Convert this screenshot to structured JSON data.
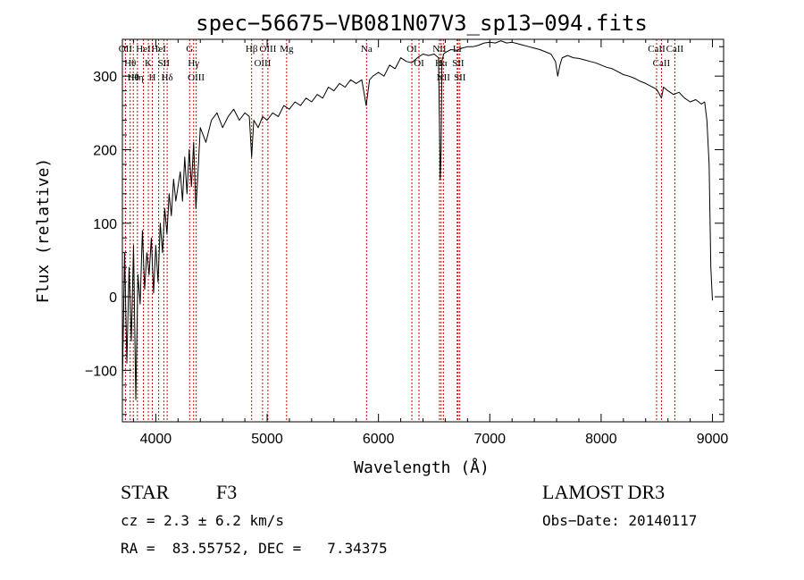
{
  "chart_data": {
    "type": "line",
    "title": "spec−56675−VB081N07V3_sp13−094.fits",
    "xlabel": "Wavelength (Å)",
    "ylabel": "Flux (relative)",
    "xlim": [
      3700,
      9100
    ],
    "ylim": [
      -170,
      350
    ],
    "xticks": [
      4000,
      5000,
      6000,
      7000,
      8000,
      9000
    ],
    "xtick_labels": [
      "4000",
      "5000",
      "6000",
      "7000",
      "8000",
      "9000"
    ],
    "yticks": [
      -100,
      0,
      100,
      200,
      300
    ],
    "ytick_labels": [
      "−100",
      "0",
      "100",
      "200",
      "300"
    ],
    "grid": false,
    "series": [
      {
        "x": [
          3700,
          3720,
          3740,
          3760,
          3780,
          3800,
          3820,
          3840,
          3860,
          3880,
          3900,
          3920,
          3940,
          3960,
          3980,
          4000,
          4020,
          4040,
          4060,
          4080,
          4100,
          4120,
          4140,
          4160,
          4180,
          4200,
          4220,
          4240,
          4260,
          4280,
          4300,
          4320,
          4340,
          4360,
          4380,
          4400,
          4450,
          4500,
          4550,
          4600,
          4650,
          4700,
          4750,
          4800,
          4840,
          4861,
          4880,
          4920,
          4960,
          5000,
          5050,
          5100,
          5150,
          5200,
          5250,
          5300,
          5350,
          5400,
          5450,
          5500,
          5550,
          5600,
          5650,
          5700,
          5750,
          5800,
          5850,
          5890,
          5920,
          5950,
          6000,
          6050,
          6100,
          6150,
          6200,
          6250,
          6300,
          6350,
          6400,
          6450,
          6500,
          6540,
          6555,
          6563,
          6570,
          6585,
          6600,
          6650,
          6700,
          6750,
          6800,
          6850,
          6900,
          6950,
          7000,
          7050,
          7100,
          7150,
          7200,
          7250,
          7300,
          7350,
          7400,
          7450,
          7500,
          7550,
          7590,
          7610,
          7630,
          7650,
          7700,
          7750,
          7800,
          7850,
          7900,
          7950,
          8000,
          8050,
          8100,
          8150,
          8200,
          8250,
          8300,
          8350,
          8400,
          8450,
          8500,
          8542,
          8560,
          8600,
          8650,
          8700,
          8750,
          8800,
          8850,
          8900,
          8930,
          8950,
          8970,
          8985,
          9000
        ],
        "y": [
          -120,
          60,
          -90,
          40,
          -60,
          70,
          -140,
          30,
          -10,
          90,
          10,
          60,
          30,
          80,
          5,
          70,
          20,
          100,
          60,
          120,
          85,
          140,
          110,
          160,
          130,
          150,
          170,
          130,
          190,
          140,
          200,
          150,
          210,
          120,
          170,
          230,
          210,
          240,
          250,
          230,
          245,
          255,
          240,
          250,
          245,
          190,
          240,
          230,
          245,
          240,
          250,
          245,
          260,
          255,
          265,
          260,
          270,
          265,
          275,
          270,
          285,
          280,
          290,
          285,
          295,
          290,
          295,
          260,
          295,
          300,
          305,
          300,
          315,
          310,
          325,
          320,
          318,
          325,
          330,
          328,
          330,
          325,
          160,
          200,
          320,
          330,
          332,
          336,
          335,
          338,
          340,
          340,
          342,
          345,
          346,
          345,
          348,
          345,
          346,
          344,
          342,
          340,
          338,
          336,
          333,
          330,
          320,
          300,
          315,
          325,
          328,
          325,
          324,
          322,
          320,
          318,
          315,
          312,
          310,
          306,
          302,
          300,
          297,
          293,
          290,
          286,
          282,
          270,
          285,
          280,
          275,
          278,
          270,
          265,
          268,
          262,
          265,
          240,
          180,
          40,
          -5
        ]
      }
    ],
    "lines": [
      {
        "x": 3727,
        "label": "OII"
      },
      {
        "x": 3770,
        "label": "Hθ"
      },
      {
        "x": 3798,
        "label": "Hθ"
      },
      {
        "x": 3835,
        "label": "Hη"
      },
      {
        "x": 3889,
        "label": "HeI"
      },
      {
        "x": 3933,
        "label": "K"
      },
      {
        "x": 3969,
        "label": "H"
      },
      {
        "x": 4026,
        "label": "HeI"
      },
      {
        "x": 4072,
        "label": "SII"
      },
      {
        "x": 4102,
        "label": "Hδ"
      },
      {
        "x": 4304,
        "label": "G"
      },
      {
        "x": 4340,
        "label": "Hγ"
      },
      {
        "x": 4363,
        "label": "OIII"
      },
      {
        "x": 4861,
        "label": "Hβ"
      },
      {
        "x": 4959,
        "label": "OIII"
      },
      {
        "x": 5007,
        "label": "OIII"
      },
      {
        "x": 5175,
        "label": "Mg"
      },
      {
        "x": 5893,
        "label": "Na"
      },
      {
        "x": 6300,
        "label": "OI"
      },
      {
        "x": 6364,
        "label": "OI"
      },
      {
        "x": 6548,
        "label": "NII"
      },
      {
        "x": 6563,
        "label": "Hα"
      },
      {
        "x": 6583,
        "label": "NII"
      },
      {
        "x": 6707,
        "label": "Li"
      },
      {
        "x": 6716,
        "label": "SII"
      },
      {
        "x": 6731,
        "label": "SII"
      },
      {
        "x": 8498,
        "label": "CaII"
      },
      {
        "x": 8542,
        "label": "CaII"
      },
      {
        "x": 8662,
        "label": "CaII"
      }
    ]
  },
  "info": {
    "object_class": "STAR",
    "subclass": "F3",
    "cz": "cz = 2.3 ± 6.2 km/s",
    "radec": "RA =  83.55752, DEC =   7.34375",
    "survey": "LAMOST DR3",
    "obs_date": "Obs−Date: 20140117"
  },
  "colors": {
    "axes": "#000000",
    "spectrum": "#000000",
    "line_markers": "#cc0000"
  }
}
